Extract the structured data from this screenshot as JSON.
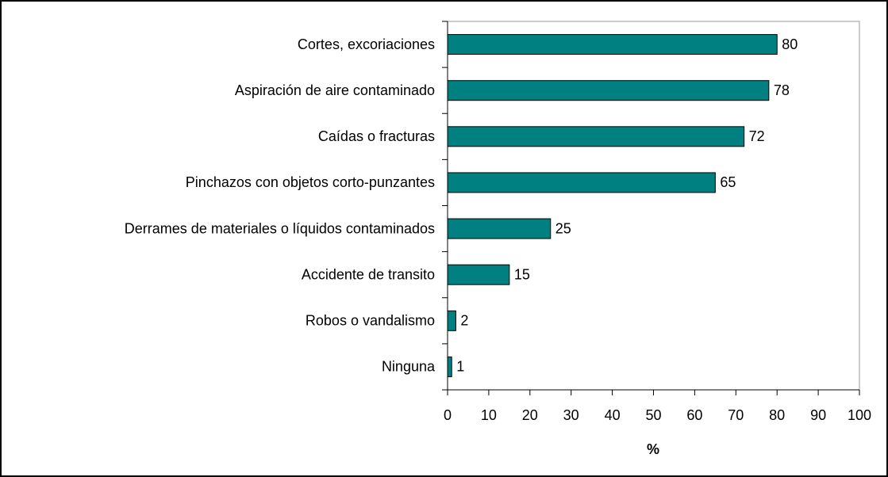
{
  "chart_data": {
    "type": "barh",
    "categories": [
      "Cortes, excoriaciones",
      "Aspiración de aire contaminado",
      "Caídas o fracturas",
      "Pinchazos con objetos corto-punzantes",
      "Derrames de materiales o líquidos contaminados",
      "Accidente de transito",
      "Robos o vandalismo",
      "Ninguna"
    ],
    "values": [
      80,
      78,
      72,
      65,
      25,
      15,
      2,
      1
    ],
    "color": "#008080",
    "xlabel": "%",
    "xlim": [
      0,
      100
    ],
    "xticks": [
      0,
      10,
      20,
      30,
      40,
      50,
      60,
      70,
      80,
      90,
      100
    ]
  }
}
